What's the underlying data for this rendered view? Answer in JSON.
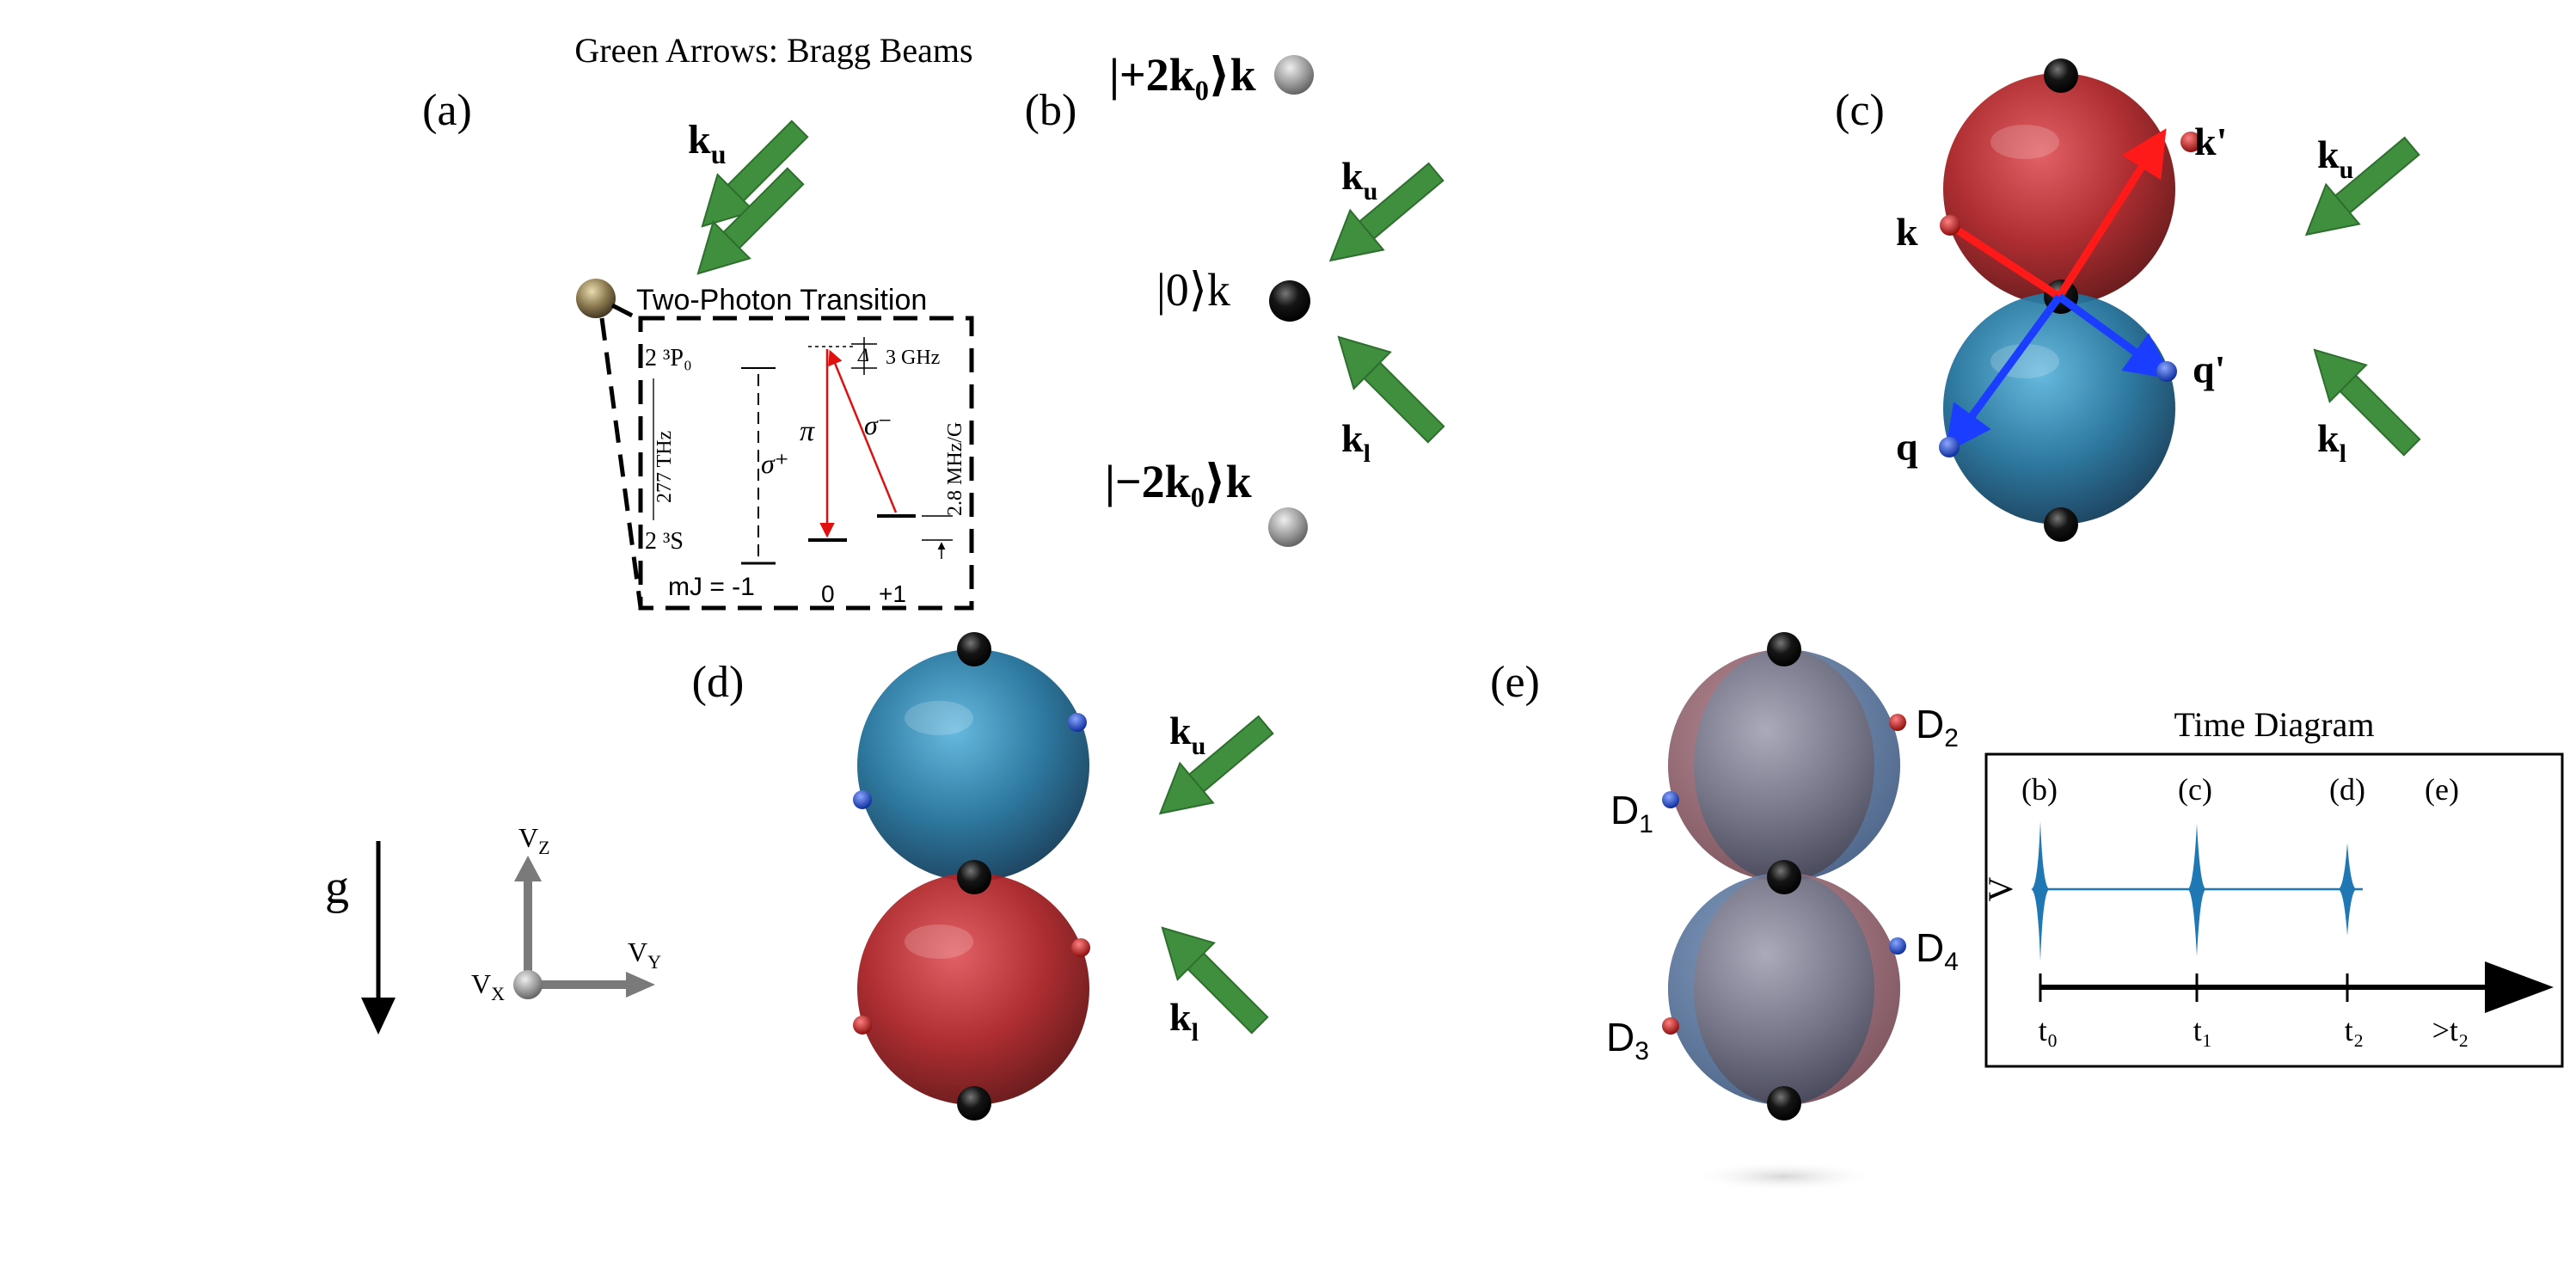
{
  "header": {
    "legend": "Green Arrows: Bragg Beams"
  },
  "panels": {
    "a": {
      "label": "(a)",
      "k_u": "k",
      "k_u_sub": "u",
      "box_title": "Two-Photon Transition",
      "upper_state": "2 ³P₀",
      "lower_state": "2 ³S",
      "frequency": "277 THz",
      "detuning": "Δ",
      "detuning_freq": "3 GHz",
      "zeeman": "2.8 MHz/G",
      "pi": "π",
      "sigma_plus": "σ⁺",
      "sigma_minus": "σ⁻",
      "mj": "mJ = -1",
      "mj_0": "0",
      "mj_p1": "+1"
    },
    "b": {
      "label": "(b)",
      "state_top": "|+2k₀⟩k",
      "state_mid": "|0⟩k",
      "state_bot": "|−2k₀⟩k",
      "k_u": "k",
      "k_u_sub": "u",
      "k_l": "k",
      "k_l_sub": "l"
    },
    "c": {
      "label": "(c)",
      "k": "k",
      "k_prime": "k'",
      "q": "q",
      "q_prime": "q'",
      "k_u": "k",
      "k_u_sub": "u",
      "k_l": "k",
      "k_l_sub": "l"
    },
    "d": {
      "label": "(d)",
      "k_u": "k",
      "k_u_sub": "u",
      "k_l": "k",
      "k_l_sub": "l"
    },
    "e": {
      "label": "(e)",
      "D1": "D",
      "D1_sub": "1",
      "D2": "D",
      "D2_sub": "2",
      "D3": "D",
      "D3_sub": "3",
      "D4": "D",
      "D4_sub": "4"
    },
    "axes": {
      "g": "g",
      "vz": "V",
      "vz_sub": "Z",
      "vy": "V",
      "vy_sub": "Y",
      "vx": "V",
      "vx_sub": "X"
    }
  },
  "time_diagram": {
    "title": "Time Diagram",
    "ylabel": "V",
    "phases": [
      "(b)",
      "(c)",
      "(d)",
      "(e)"
    ],
    "ticks": [
      "t₀",
      "t₁",
      "t₂",
      ">t₂"
    ]
  },
  "colors": {
    "bragg_green": "#3f8f3f",
    "red_sphere": "#a81e22",
    "blue_sphere": "#1e6f99",
    "gray_sphere": "#6a6a7e",
    "pulse_blue": "#1f77b4",
    "red_arrow": "#ff1a1a",
    "blue_arrow": "#1a3dff"
  }
}
